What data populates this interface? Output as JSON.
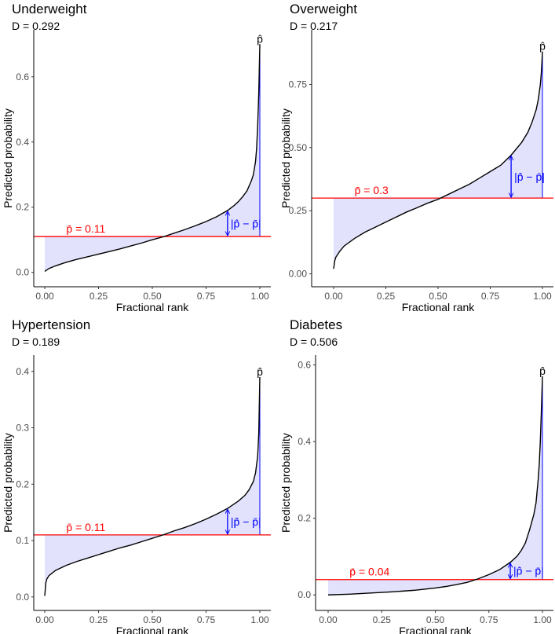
{
  "figure": {
    "xlabel": "Fractional rank",
    "ylabel": "Predicted probability",
    "xticks": [
      "0.00",
      "0.25",
      "0.50",
      "0.75",
      "1.00"
    ],
    "phat_label": "p̂",
    "diff_label": "|p̂ − p̄|",
    "colors": {
      "curve": "#000000",
      "mean_line": "#ff0000",
      "shade": "#e2e2fc",
      "arrow": "#0000ff"
    }
  },
  "chart_data": [
    {
      "type": "line",
      "title": "Underweight",
      "d_label": "D = 0.292",
      "mean_label": "p̄ = 0.11",
      "mean": 0.11,
      "xlabel": "Fractional rank",
      "ylabel": "Predicted probability",
      "xlim": [
        0,
        1
      ],
      "ylim": [
        -0.02,
        0.72
      ],
      "yticks": [
        0.0,
        0.2,
        0.4,
        0.6
      ],
      "yticklabels": [
        "0.0",
        "0.2",
        "0.4",
        "0.6"
      ],
      "x": [
        0,
        0.02,
        0.05,
        0.1,
        0.15,
        0.2,
        0.25,
        0.3,
        0.35,
        0.4,
        0.45,
        0.5,
        0.55,
        0.6,
        0.65,
        0.7,
        0.75,
        0.8,
        0.85,
        0.88,
        0.9,
        0.92,
        0.94,
        0.96,
        0.97,
        0.98,
        0.985,
        0.99,
        0.995,
        1.0
      ],
      "y": [
        0.003,
        0.012,
        0.02,
        0.031,
        0.04,
        0.048,
        0.056,
        0.064,
        0.072,
        0.081,
        0.09,
        0.1,
        0.109,
        0.12,
        0.131,
        0.143,
        0.156,
        0.171,
        0.19,
        0.205,
        0.217,
        0.232,
        0.25,
        0.28,
        0.3,
        0.34,
        0.38,
        0.45,
        0.55,
        0.7
      ],
      "arrow_x": 0.85
    },
    {
      "type": "line",
      "title": "Overweight",
      "d_label": "D = 0.217",
      "mean_label": "p̄ = 0.3",
      "mean": 0.3,
      "xlabel": "Fractional rank",
      "ylabel": "Predicted probability",
      "xlim": [
        0,
        1
      ],
      "ylim": [
        -0.02,
        0.935
      ],
      "yticks": [
        0.0,
        0.25,
        0.5,
        0.75
      ],
      "yticklabels": [
        "0.00",
        "0.25",
        "0.50",
        "0.75"
      ],
      "x": [
        0,
        0.005,
        0.01,
        0.03,
        0.05,
        0.1,
        0.15,
        0.2,
        0.25,
        0.3,
        0.35,
        0.4,
        0.45,
        0.5,
        0.55,
        0.6,
        0.65,
        0.7,
        0.75,
        0.8,
        0.85,
        0.9,
        0.93,
        0.95,
        0.97,
        0.98,
        0.99,
        0.995,
        1.0
      ],
      "y": [
        0.02,
        0.05,
        0.065,
        0.09,
        0.11,
        0.14,
        0.165,
        0.185,
        0.205,
        0.225,
        0.245,
        0.262,
        0.28,
        0.295,
        0.315,
        0.335,
        0.355,
        0.38,
        0.405,
        0.43,
        0.47,
        0.52,
        0.56,
        0.6,
        0.65,
        0.69,
        0.75,
        0.8,
        0.88
      ],
      "arrow_x": 0.85
    },
    {
      "type": "line",
      "title": "Hypertension",
      "d_label": "D = 0.189",
      "mean_label": "p̄ = 0.11",
      "mean": 0.11,
      "xlabel": "Fractional rank",
      "ylabel": "Predicted probability",
      "xlim": [
        0,
        1
      ],
      "ylim": [
        -0.01,
        0.415
      ],
      "yticks": [
        0.0,
        0.1,
        0.2,
        0.3,
        0.4
      ],
      "yticklabels": [
        "0.0",
        "0.1",
        "0.2",
        "0.3",
        "0.4"
      ],
      "x": [
        0,
        0.005,
        0.01,
        0.02,
        0.05,
        0.1,
        0.15,
        0.2,
        0.25,
        0.3,
        0.35,
        0.4,
        0.45,
        0.5,
        0.55,
        0.6,
        0.65,
        0.7,
        0.75,
        0.8,
        0.85,
        0.9,
        0.93,
        0.95,
        0.97,
        0.98,
        0.99,
        0.995,
        1.0
      ],
      "y": [
        0.002,
        0.025,
        0.032,
        0.038,
        0.047,
        0.056,
        0.063,
        0.069,
        0.075,
        0.081,
        0.087,
        0.092,
        0.098,
        0.104,
        0.11,
        0.117,
        0.123,
        0.13,
        0.138,
        0.147,
        0.157,
        0.17,
        0.18,
        0.19,
        0.205,
        0.22,
        0.25,
        0.29,
        0.39
      ],
      "arrow_x": 0.85
    },
    {
      "type": "line",
      "title": "Diabetes",
      "d_label": "D = 0.506",
      "mean_label": "p̄ = 0.04",
      "mean": 0.04,
      "xlabel": "Fractional rank",
      "ylabel": "Predicted probability",
      "xlim": [
        0,
        1
      ],
      "ylim": [
        -0.02,
        0.605
      ],
      "yticks": [
        0.0,
        0.2,
        0.4,
        0.6
      ],
      "yticklabels": [
        "0.0",
        "0.2",
        "0.4",
        "0.6"
      ],
      "x": [
        0,
        0.1,
        0.2,
        0.3,
        0.4,
        0.5,
        0.55,
        0.6,
        0.65,
        0.7,
        0.75,
        0.8,
        0.85,
        0.88,
        0.9,
        0.92,
        0.94,
        0.95,
        0.96,
        0.97,
        0.98,
        0.985,
        0.99,
        0.995,
        1.0
      ],
      "y": [
        0.0,
        0.002,
        0.005,
        0.008,
        0.012,
        0.018,
        0.022,
        0.027,
        0.033,
        0.042,
        0.053,
        0.066,
        0.085,
        0.1,
        0.115,
        0.135,
        0.17,
        0.19,
        0.21,
        0.24,
        0.3,
        0.34,
        0.4,
        0.48,
        0.57
      ],
      "arrow_x": 0.85
    }
  ]
}
